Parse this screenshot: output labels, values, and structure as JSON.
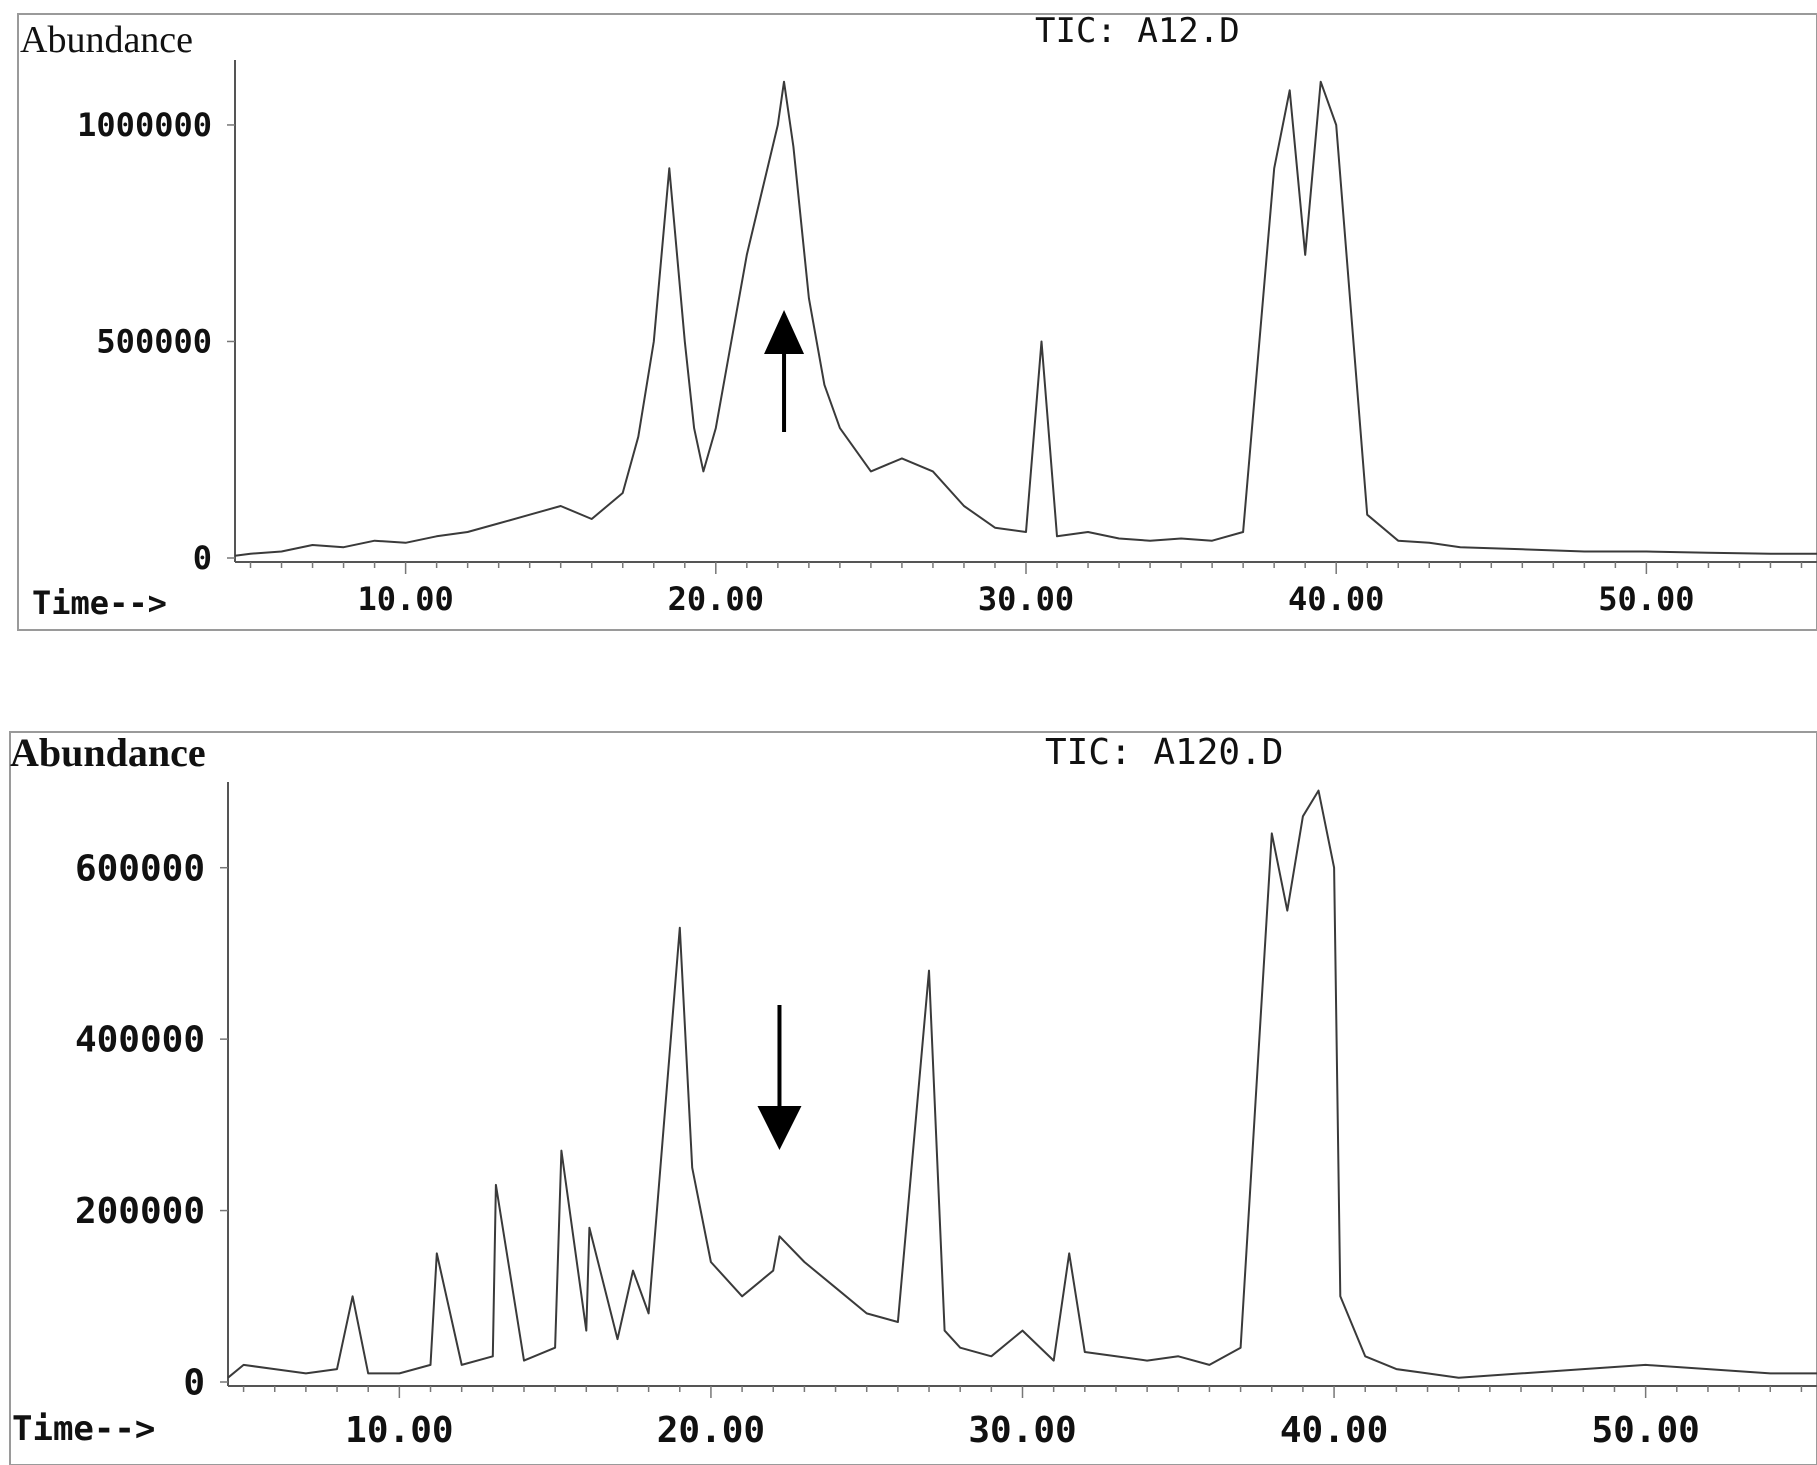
{
  "charts": [
    {
      "id": "top",
      "ylabel": "Abundance",
      "xlabel": "Time-->",
      "title": "TIC: A12.D",
      "xlim": [
        4.5,
        55.5
      ],
      "ylim": [
        0,
        1150000
      ],
      "xticks": [
        "10.00",
        "20.00",
        "30.00",
        "40.00",
        "50.00"
      ],
      "yticks": [
        "1000000",
        "500000",
        "0"
      ],
      "arrow": {
        "x": 22.2,
        "direction": "up"
      }
    },
    {
      "id": "bottom",
      "ylabel": "Abundance",
      "xlabel": "Time-->",
      "title": "TIC: A120.D",
      "xlim": [
        4.5,
        55.5
      ],
      "ylim": [
        0,
        700000
      ],
      "xticks": [
        "10.00",
        "20.00",
        "30.00",
        "40.00",
        "50.00"
      ],
      "yticks": [
        "600000",
        "400000",
        "200000",
        "0"
      ],
      "arrow": {
        "x": 22.2,
        "direction": "down"
      }
    }
  ],
  "chart_data": [
    {
      "type": "line",
      "title": "TIC: A12.D",
      "xlabel": "Time-->",
      "ylabel": "Abundance",
      "xlim": [
        4.5,
        55.5
      ],
      "ylim": [
        0,
        1150000
      ],
      "x_ticks": [
        10,
        20,
        30,
        40,
        50
      ],
      "y_ticks": [
        0,
        500000,
        1000000
      ],
      "grid": false,
      "series": [
        {
          "x": [
            4.5,
            5,
            6,
            7,
            8,
            9,
            10,
            11,
            12,
            13,
            14,
            15,
            16,
            17,
            17.5,
            18,
            18.5,
            19,
            19.3,
            19.6,
            20,
            20.5,
            21,
            21.5,
            22,
            22.2,
            22.5,
            23,
            23.5,
            24,
            25,
            26,
            27,
            28,
            29,
            30,
            30.5,
            31,
            32,
            33,
            34,
            35,
            36,
            37,
            38,
            38.5,
            39,
            39.5,
            40,
            41,
            42,
            43,
            44,
            46,
            48,
            50,
            52,
            54,
            55.5
          ],
          "y": [
            5000,
            10000,
            15000,
            30000,
            25000,
            40000,
            35000,
            50000,
            60000,
            80000,
            100000,
            120000,
            90000,
            150000,
            280000,
            500000,
            900000,
            500000,
            300000,
            200000,
            300000,
            500000,
            700000,
            850000,
            1000000,
            1100000,
            950000,
            600000,
            400000,
            300000,
            200000,
            230000,
            200000,
            120000,
            70000,
            60000,
            500000,
            50000,
            60000,
            45000,
            40000,
            45000,
            40000,
            60000,
            900000,
            1080000,
            700000,
            1100000,
            1000000,
            100000,
            40000,
            35000,
            25000,
            20000,
            15000,
            15000,
            12000,
            10000,
            10000
          ]
        }
      ]
    },
    {
      "type": "line",
      "title": "TIC: A120.D",
      "xlabel": "Time-->",
      "ylabel": "Abundance",
      "xlim": [
        4.5,
        55.5
      ],
      "ylim": [
        0,
        700000
      ],
      "x_ticks": [
        10,
        20,
        30,
        40,
        50
      ],
      "y_ticks": [
        0,
        200000,
        400000,
        600000
      ],
      "grid": false,
      "series": [
        {
          "x": [
            4.5,
            5,
            6,
            7,
            8,
            8.5,
            9,
            10,
            11,
            11.2,
            12,
            13,
            13.1,
            14,
            15,
            15.2,
            16,
            16.1,
            17,
            17.5,
            18,
            19,
            19.4,
            20,
            21,
            22,
            22.2,
            23,
            24,
            25,
            26,
            27,
            27.5,
            28,
            29,
            30,
            31,
            31.5,
            32,
            33,
            34,
            35,
            36,
            37,
            38,
            38.5,
            39,
            39.5,
            40,
            40.2,
            41,
            42,
            43,
            44,
            46,
            48,
            50,
            52,
            54,
            55.5
          ],
          "y": [
            5000,
            20000,
            15000,
            10000,
            15000,
            100000,
            10000,
            10000,
            20000,
            150000,
            20000,
            30000,
            230000,
            25000,
            40000,
            270000,
            60000,
            180000,
            50000,
            130000,
            80000,
            530000,
            250000,
            140000,
            100000,
            130000,
            170000,
            140000,
            110000,
            80000,
            70000,
            480000,
            60000,
            40000,
            30000,
            60000,
            25000,
            150000,
            35000,
            30000,
            25000,
            30000,
            20000,
            40000,
            640000,
            550000,
            660000,
            690000,
            600000,
            100000,
            30000,
            15000,
            10000,
            5000,
            10000,
            15000,
            20000,
            15000,
            10000,
            10000
          ]
        }
      ]
    }
  ]
}
